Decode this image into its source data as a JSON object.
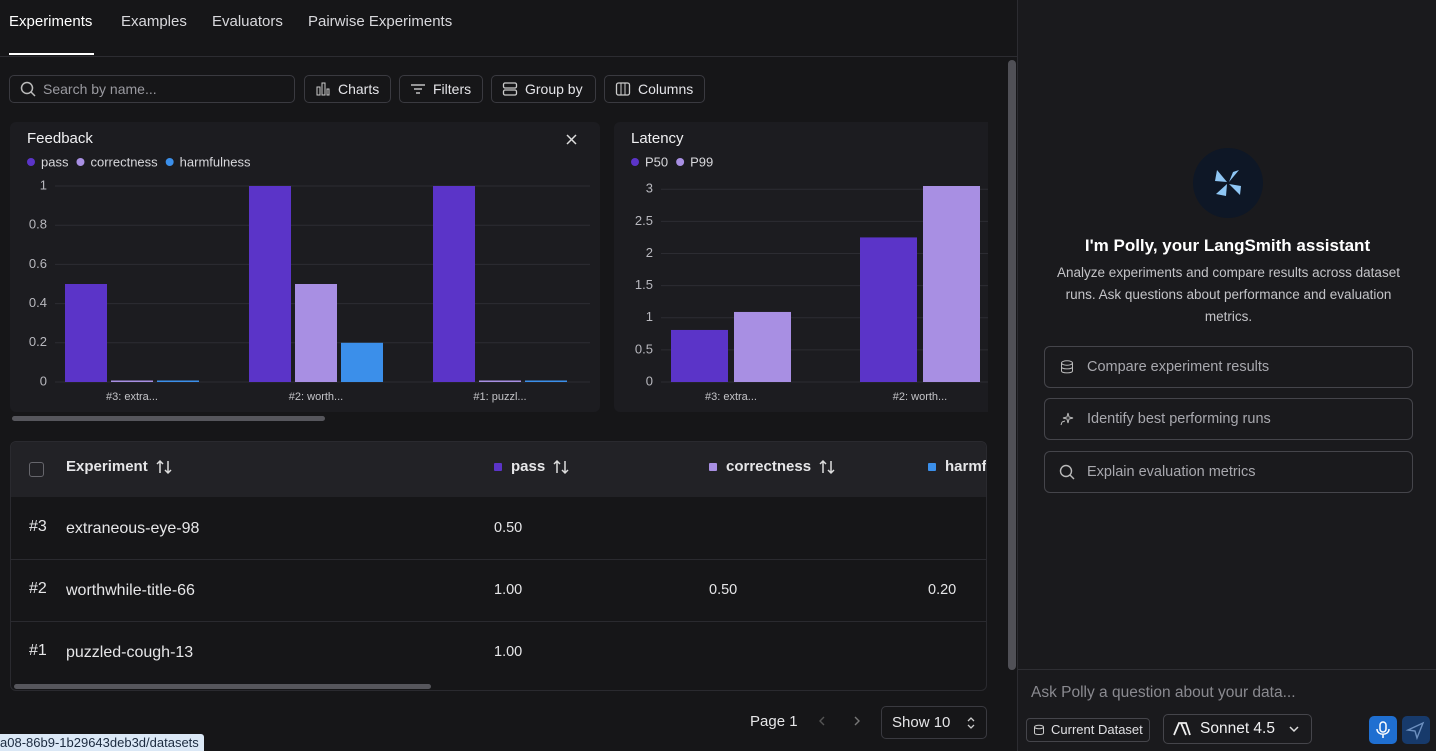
{
  "tabs": [
    "Experiments",
    "Examples",
    "Evaluators",
    "Pairwise Experiments"
  ],
  "toolbar": {
    "search_placeholder": "Search by name...",
    "buttons": [
      "Charts",
      "Filters",
      "Group by",
      "Columns"
    ]
  },
  "chart_data": [
    {
      "type": "bar",
      "title": "Feedback",
      "categories": [
        "#3: extra...",
        "#2: worth...",
        "#1: puzzl..."
      ],
      "series": [
        {
          "name": "pass",
          "color": "#5b34c8",
          "values": [
            0.5,
            1,
            1
          ]
        },
        {
          "name": "correctness",
          "color": "#a88fe3",
          "values": [
            0,
            0.5,
            0
          ]
        },
        {
          "name": "harmfulness",
          "color": "#3b8fea",
          "values": [
            0,
            0.2,
            0
          ]
        }
      ],
      "ylim": [
        0,
        1
      ],
      "yticks": [
        0,
        0.2,
        0.4,
        0.6,
        0.8,
        1
      ],
      "grid": true
    },
    {
      "type": "bar",
      "title": "Latency",
      "categories": [
        "#3: extra...",
        "#2: worth..."
      ],
      "series": [
        {
          "name": "P50",
          "color": "#5b34c8",
          "values": [
            0.81,
            2.25
          ]
        },
        {
          "name": "P99",
          "color": "#a88fe3",
          "values": [
            1.09,
            3.05
          ]
        }
      ],
      "ylim": [
        0,
        3.05
      ],
      "yticks": [
        0,
        0.5,
        1,
        1.5,
        2,
        2.5,
        3
      ],
      "grid": true
    }
  ],
  "table": {
    "columns": [
      "Experiment",
      "pass",
      "correctness",
      "harmfulness"
    ],
    "rows": [
      {
        "rank": "#3",
        "name": "extraneous-eye-98",
        "pass": "0.50"
      },
      {
        "rank": "#2",
        "name": "worthwhile-title-66",
        "pass": "1.00",
        "correctness": "0.50",
        "harmfulness": "0.20"
      },
      {
        "rank": "#1",
        "name": "puzzled-cough-13",
        "pass": "1.00"
      }
    ]
  },
  "pagination": {
    "page": "Page 1",
    "show": "Show 10"
  },
  "assistant": {
    "title": "I'm Polly, your LangSmith assistant",
    "description": "Analyze experiments and compare results across dataset runs. Ask questions about performance and evaluation metrics.",
    "suggestions": [
      "Compare experiment results",
      "Identify best performing runs",
      "Explain evaluation metrics"
    ],
    "input_placeholder": "Ask Polly a question about your data...",
    "context": "Current Dataset",
    "model": "Sonnet 4.5"
  },
  "status_url": "a08-86b9-1b29643deb3d/datasets"
}
